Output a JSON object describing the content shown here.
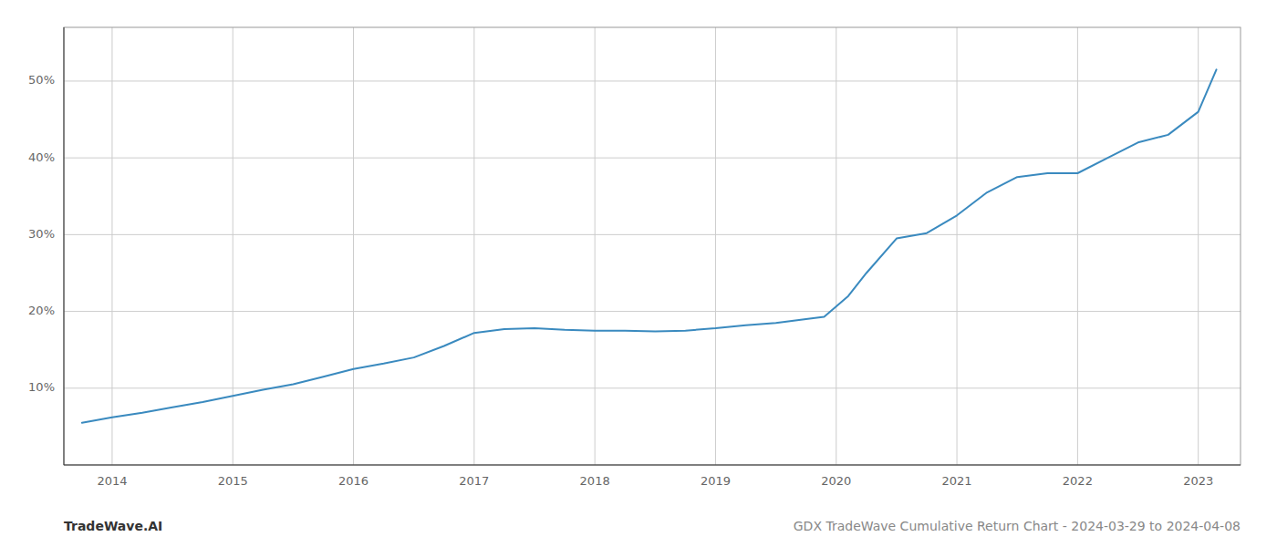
{
  "chart_data": {
    "type": "line",
    "title": "GDX TradeWave Cumulative Return Chart - 2024-03-29 to 2024-04-08",
    "annotations": [
      "TradeWave.AI"
    ],
    "x": [
      2013.75,
      2014.0,
      2014.25,
      2014.5,
      2014.75,
      2015.0,
      2015.25,
      2015.5,
      2015.75,
      2016.0,
      2016.25,
      2016.5,
      2016.75,
      2017.0,
      2017.25,
      2017.5,
      2017.75,
      2018.0,
      2018.25,
      2018.5,
      2018.75,
      2019.0,
      2019.25,
      2019.5,
      2019.75,
      2019.9,
      2020.1,
      2020.25,
      2020.5,
      2020.75,
      2021.0,
      2021.25,
      2021.5,
      2021.75,
      2022.0,
      2022.25,
      2022.5,
      2022.75,
      2023.0,
      2023.15
    ],
    "values": [
      5.5,
      6.2,
      6.8,
      7.5,
      8.2,
      9.0,
      9.8,
      10.5,
      11.5,
      12.5,
      13.2,
      14.0,
      15.5,
      17.2,
      17.7,
      17.8,
      17.6,
      17.5,
      17.5,
      17.4,
      17.5,
      17.8,
      18.2,
      18.5,
      19.0,
      19.3,
      22.0,
      25.0,
      29.5,
      30.2,
      32.5,
      35.5,
      37.5,
      38.0,
      38.0,
      40.0,
      42.0,
      43.0,
      46.0,
      51.5
    ],
    "color": "#3a8abf",
    "xlim": [
      2013.6,
      2023.35
    ],
    "xticks": [
      2014,
      2015,
      2016,
      2017,
      2018,
      2019,
      2020,
      2021,
      2022,
      2023
    ],
    "ylim": [
      0,
      57
    ],
    "yticks": [
      {
        "value": 10,
        "label": "10%"
      },
      {
        "value": 20,
        "label": "20%"
      },
      {
        "value": 30,
        "label": "30%"
      },
      {
        "value": 40,
        "label": "40%"
      },
      {
        "value": 50,
        "label": "50%"
      }
    ],
    "grid": true
  }
}
